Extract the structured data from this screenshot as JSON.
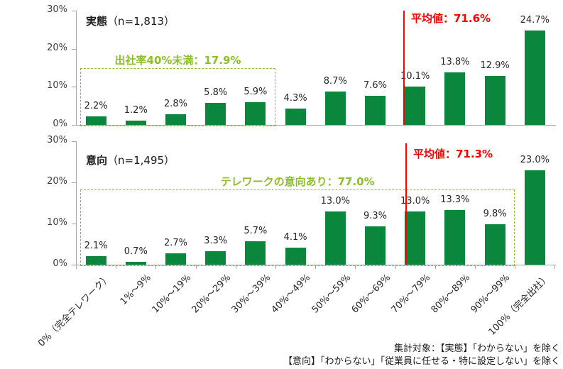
{
  "figure": {
    "footer_lines": [
      "集計対象：【実態】「わからない」を除く",
      "【意向】「わからない」「従業員に任せる・特に設定しない」を除く"
    ]
  },
  "colors": {
    "bar_green": "#0A873C",
    "annotation_green": "#8CBE2D",
    "mean_red": "#FF0000",
    "axis_gray": "#A6A6A6",
    "value_text": "#262626"
  },
  "chart_data": [
    {
      "type": "bar",
      "title": "実態",
      "n_label": "（n=1,813）",
      "categories": [
        "0%（完全テレワーク）",
        "1%～9%",
        "10%～19%",
        "20%～29%",
        "30%～39%",
        "40%～49%",
        "50%～59%",
        "60%～69%",
        "70%～79%",
        "80%～89%",
        "90%～99%",
        "100%（完全出社）"
      ],
      "values": [
        2.2,
        1.2,
        2.8,
        5.8,
        5.9,
        4.3,
        8.7,
        7.6,
        10.1,
        13.8,
        12.9,
        24.7
      ],
      "value_suffix": "%",
      "ylim": [
        0,
        30
      ],
      "ytick_labels": [
        "0%",
        "10%",
        "20%",
        "30%"
      ],
      "grid": "off",
      "legend": "none",
      "mean_line": {
        "value": 71.6,
        "label": "平均値：71.6%"
      },
      "highlight": {
        "label": "出社率40%未満：17.9%",
        "from_category": 0,
        "to_category": 4,
        "box_top_value": 15
      }
    },
    {
      "type": "bar",
      "title": "意向",
      "n_label": "（n=1,495）",
      "categories": [
        "0%（完全テレワーク）",
        "1%～9%",
        "10%～19%",
        "20%～29%",
        "30%～39%",
        "40%～49%",
        "50%～59%",
        "60%～69%",
        "70%～79%",
        "80%～89%",
        "90%～99%",
        "100%（完全出社）"
      ],
      "values": [
        2.1,
        0.7,
        2.7,
        3.3,
        5.7,
        4.1,
        13.0,
        9.3,
        13.0,
        13.3,
        9.8,
        23.0
      ],
      "value_suffix": "%",
      "ylim": [
        0,
        30
      ],
      "ytick_labels": [
        "0%",
        "10%",
        "20%",
        "30%"
      ],
      "grid": "off",
      "legend": "none",
      "mean_line": {
        "value": 71.3,
        "label": "平均値：71.3%"
      },
      "highlight": {
        "label": "テレワークの意向あり：77.0%",
        "from_category": 0,
        "to_category": 10,
        "box_top_value": 18.3
      }
    }
  ]
}
